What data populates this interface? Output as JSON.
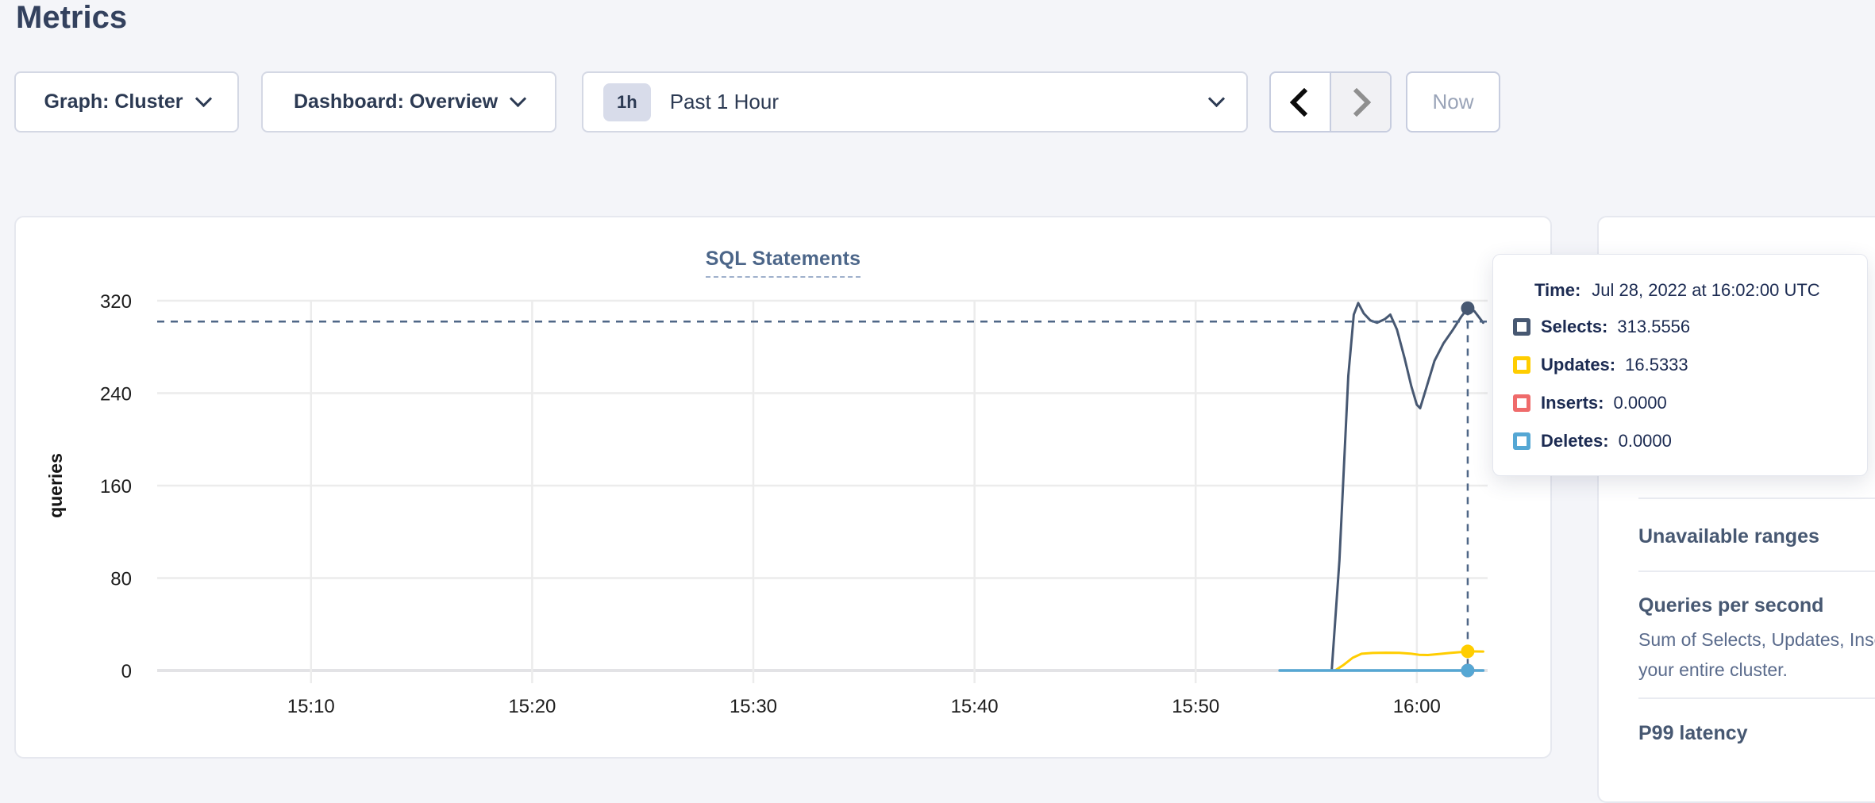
{
  "page": {
    "title": "Metrics"
  },
  "controls": {
    "graph_dropdown": {
      "label": "Graph: Cluster"
    },
    "dashboard_dropdown": {
      "label": "Dashboard: Overview"
    },
    "time_range": {
      "badge": "1h",
      "label": "Past 1 Hour"
    },
    "now_button": {
      "label": "Now"
    }
  },
  "chart_data": {
    "type": "line",
    "title": "SQL Statements",
    "xlabel": "",
    "ylabel": "queries",
    "ylim": [
      0,
      320
    ],
    "y_ticks": [
      0,
      80,
      160,
      240,
      320
    ],
    "x_ticks": [
      {
        "minute": 10,
        "label": "15:10"
      },
      {
        "minute": 20,
        "label": "15:20"
      },
      {
        "minute": 30,
        "label": "15:30"
      },
      {
        "minute": 40,
        "label": "15:40"
      },
      {
        "minute": 50,
        "label": "15:50"
      },
      {
        "minute": 60,
        "label": "16:00"
      }
    ],
    "x_domain_minutes": [
      2.4,
      63.2
    ],
    "grid": true,
    "legend_position": "tooltip-only",
    "series": [
      {
        "name": "Selects",
        "color": "#475872",
        "points": [
          [
            53.8,
            0
          ],
          [
            56.15,
            0
          ],
          [
            56.5,
            95
          ],
          [
            56.9,
            255
          ],
          [
            57.15,
            308
          ],
          [
            57.35,
            318
          ],
          [
            57.6,
            309
          ],
          [
            57.9,
            303
          ],
          [
            58.2,
            301
          ],
          [
            58.55,
            304
          ],
          [
            58.8,
            308
          ],
          [
            59.1,
            295
          ],
          [
            59.45,
            270
          ],
          [
            59.75,
            246
          ],
          [
            60.0,
            230
          ],
          [
            60.15,
            227
          ],
          [
            60.45,
            246
          ],
          [
            60.8,
            268
          ],
          [
            61.2,
            283
          ],
          [
            61.6,
            294
          ],
          [
            62.0,
            306
          ],
          [
            62.3,
            313.5556
          ],
          [
            62.6,
            311
          ],
          [
            63.0,
            301
          ]
        ]
      },
      {
        "name": "Updates",
        "color": "#ffcd00",
        "points": [
          [
            53.8,
            0
          ],
          [
            56.3,
            0
          ],
          [
            56.7,
            5
          ],
          [
            57.1,
            11
          ],
          [
            57.5,
            14.5
          ],
          [
            58.0,
            15.2
          ],
          [
            58.6,
            15.4
          ],
          [
            59.2,
            15.3
          ],
          [
            59.7,
            14.6
          ],
          [
            60.1,
            13.6
          ],
          [
            60.5,
            13.4
          ],
          [
            61.0,
            14.3
          ],
          [
            61.5,
            15.2
          ],
          [
            62.0,
            15.9
          ],
          [
            62.3,
            16.5333
          ],
          [
            63.0,
            16.4
          ]
        ]
      },
      {
        "name": "Inserts",
        "color": "#ef6b6b",
        "points": [
          [
            53.8,
            0
          ],
          [
            63.0,
            0
          ]
        ]
      },
      {
        "name": "Deletes",
        "color": "#55a7d4",
        "points": [
          [
            53.8,
            0
          ],
          [
            63.0,
            0
          ]
        ]
      }
    ],
    "hover": {
      "minute": 62.3,
      "crosshair_value": 302,
      "dots": [
        {
          "series": "Selects",
          "value": 313.5556
        },
        {
          "series": "Updates",
          "value": 16.5333
        },
        {
          "series": "Inserts",
          "value": 0.0
        },
        {
          "series": "Deletes",
          "value": 0.0
        }
      ]
    }
  },
  "tooltip": {
    "time_label": "Time:",
    "time_value": "Jul 28, 2022 at 16:02:00 UTC",
    "rows": [
      {
        "label": "Selects:",
        "value": "313.5556",
        "color": "#475872"
      },
      {
        "label": "Updates:",
        "value": "16.5333",
        "color": "#ffcd00"
      },
      {
        "label": "Inserts:",
        "value": "0.0000",
        "color": "#ef6b6b"
      },
      {
        "label": "Deletes:",
        "value": "0.0000",
        "color": "#55a7d4"
      }
    ]
  },
  "sidebar": {
    "items": [
      {
        "title": "Unavailable ranges"
      },
      {
        "title": "Queries per second",
        "description_lines": [
          "Sum of Selects, Updates, Inserts",
          "your entire cluster."
        ]
      },
      {
        "title": "P99 latency"
      }
    ]
  }
}
